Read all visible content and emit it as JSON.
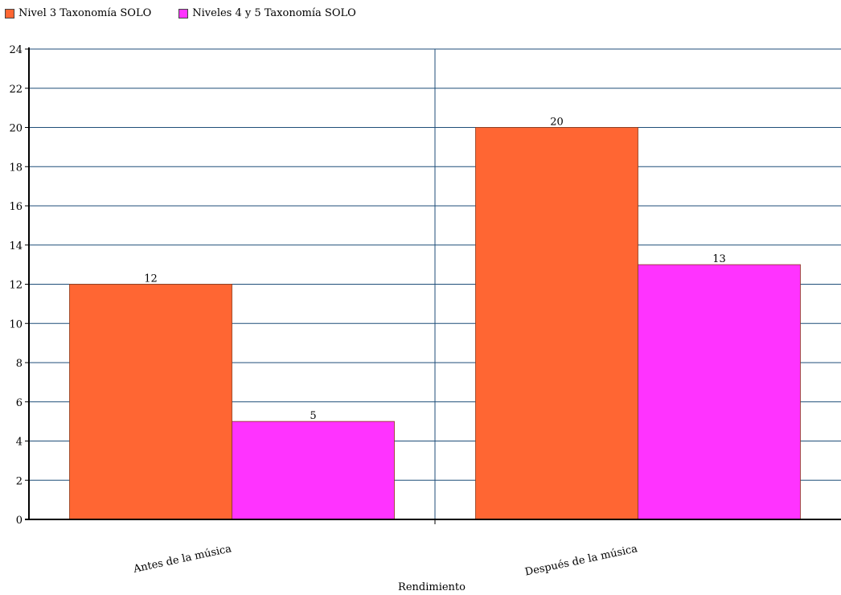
{
  "chart_data": {
    "type": "bar",
    "categories": [
      "Antes de la música",
      "Después de la música"
    ],
    "series": [
      {
        "name": "Nivel 3 Taxonomía SOLO",
        "values": [
          12,
          20
        ],
        "color": "#FF6633"
      },
      {
        "name": "Niveles 4 y 5 Taxonomía SOLO",
        "values": [
          5,
          13
        ],
        "color": "#FF33FF"
      }
    ],
    "title": "",
    "xlabel": "Rendimiento",
    "ylabel": "",
    "ylim": [
      0,
      24
    ],
    "yticks": [
      0,
      2,
      4,
      6,
      8,
      10,
      12,
      14,
      16,
      18,
      20,
      22,
      24
    ],
    "grid": true,
    "legend_position": "top-left",
    "colors": {
      "grid": "#1F4E79",
      "axis": "#000000",
      "bar_border": "#8B3A1A"
    }
  }
}
